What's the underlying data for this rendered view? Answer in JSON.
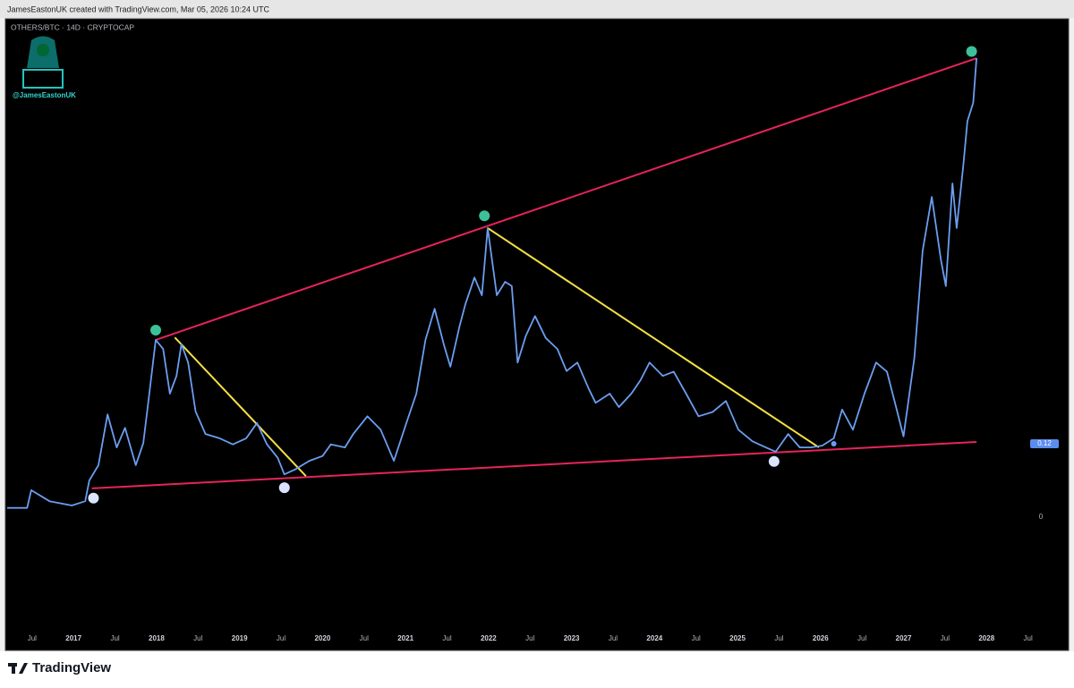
{
  "chart_data": {
    "type": "line",
    "header": "JamesEastonUK created with TradingView.com, Mar 05, 2026 10:24 UTC",
    "symbol": "OTHERS/BTC · 14D · CRYPTOCAP",
    "watermark": "@JamesEastonUK",
    "brand": "TradingView",
    "xlim": [
      2016.2,
      2029.0
    ],
    "ylim": [
      -0.186,
      0.814
    ],
    "xticks": [
      {
        "value": 2016.5,
        "label": "Jul"
      },
      2017,
      {
        "value": 2017.5,
        "label": "Jul"
      },
      2018,
      {
        "value": 2018.5,
        "label": "Jul"
      },
      2019,
      {
        "value": 2019.5,
        "label": "Jul"
      },
      2020,
      {
        "value": 2020.5,
        "label": "Jul"
      },
      2021,
      {
        "value": 2021.5,
        "label": "Jul"
      },
      2022,
      {
        "value": 2022.5,
        "label": "Jul"
      },
      2023,
      {
        "value": 2023.5,
        "label": "Jul"
      },
      2024,
      {
        "value": 2024.5,
        "label": "Jul"
      },
      2025,
      {
        "value": 2025.5,
        "label": "Jul"
      },
      2026,
      {
        "value": 2026.5,
        "label": "Jul"
      },
      2027,
      {
        "value": 2027.5,
        "label": "Jul"
      },
      2028,
      {
        "value": 2028.5,
        "label": "Jul"
      }
    ],
    "yticks": [
      0
    ],
    "price_label": 0.12,
    "price_label_color": "#5b8def",
    "color": "#6b9ef0",
    "x": [
      2016.2,
      2016.44,
      2016.49,
      2016.71,
      2016.98,
      2017.14,
      2017.19,
      2017.3,
      2017.41,
      2017.52,
      2017.62,
      2017.75,
      2017.84,
      2017.9,
      2017.99,
      2018.08,
      2018.16,
      2018.24,
      2018.3,
      2018.38,
      2018.47,
      2018.59,
      2018.76,
      2018.92,
      2019.08,
      2019.21,
      2019.33,
      2019.46,
      2019.54,
      2019.67,
      2019.84,
      2020.0,
      2020.1,
      2020.27,
      2020.37,
      2020.54,
      2020.7,
      2020.86,
      2021.02,
      2021.13,
      2021.24,
      2021.35,
      2021.46,
      2021.54,
      2021.65,
      2021.72,
      2021.83,
      2021.92,
      2021.99,
      2022.1,
      2022.2,
      2022.28,
      2022.35,
      2022.45,
      2022.56,
      2022.69,
      2022.83,
      2022.94,
      2023.07,
      2023.21,
      2023.29,
      2023.46,
      2023.57,
      2023.72,
      2023.83,
      2023.94,
      2024.1,
      2024.23,
      2024.38,
      2024.53,
      2024.7,
      2024.86,
      2025.01,
      2025.18,
      2025.34,
      2025.46,
      2025.61,
      2025.75,
      2025.88,
      2026.02,
      2026.16,
      2026.26,
      2026.39,
      2026.53,
      2026.67,
      2026.8,
      2026.91,
      2027.0,
      2027.13,
      2027.23,
      2027.34,
      2027.45,
      2027.51,
      2027.59,
      2027.64,
      2027.72,
      2027.77,
      2027.84,
      2027.88
    ],
    "values": [
      0.015,
      0.015,
      0.044,
      0.026,
      0.019,
      0.026,
      0.06,
      0.085,
      0.168,
      0.114,
      0.146,
      0.085,
      0.121,
      0.187,
      0.29,
      0.275,
      0.202,
      0.231,
      0.283,
      0.253,
      0.173,
      0.136,
      0.129,
      0.119,
      0.129,
      0.154,
      0.119,
      0.097,
      0.07,
      0.078,
      0.092,
      0.1,
      0.119,
      0.114,
      0.136,
      0.165,
      0.143,
      0.092,
      0.158,
      0.202,
      0.29,
      0.341,
      0.283,
      0.246,
      0.312,
      0.348,
      0.392,
      0.363,
      0.473,
      0.363,
      0.385,
      0.378,
      0.253,
      0.297,
      0.329,
      0.293,
      0.275,
      0.239,
      0.253,
      0.209,
      0.187,
      0.202,
      0.18,
      0.202,
      0.224,
      0.253,
      0.231,
      0.238,
      0.202,
      0.165,
      0.172,
      0.19,
      0.143,
      0.124,
      0.114,
      0.107,
      0.136,
      0.114,
      0.114,
      0.117,
      0.129,
      0.176,
      0.143,
      0.202,
      0.253,
      0.238,
      0.18,
      0.132,
      0.26,
      0.436,
      0.524,
      0.421,
      0.378,
      0.546,
      0.473,
      0.575,
      0.648,
      0.678,
      0.751
    ],
    "trendlines": [
      {
        "color": "#e6245a",
        "x": [
          2017.99,
          2027.88
        ],
        "values": [
          0.29,
          0.751
        ]
      },
      {
        "color": "#e6245a",
        "x": [
          2017.22,
          2027.88
        ],
        "values": [
          0.047,
          0.123
        ]
      },
      {
        "color": "#f5e142",
        "x": [
          2018.22,
          2019.8
        ],
        "values": [
          0.294,
          0.067
        ]
      },
      {
        "color": "#f5e142",
        "x": [
          2021.99,
          2025.98
        ],
        "values": [
          0.473,
          0.114
        ]
      }
    ],
    "markers": [
      {
        "color": "#3dbf9a",
        "x": [
          2017.99,
          2021.95,
          2027.82
        ],
        "values": [
          0.306,
          0.493,
          0.762
        ]
      },
      {
        "color": "#dbe4ff",
        "x": [
          2017.24,
          2019.54,
          2025.44
        ],
        "values": [
          0.031,
          0.048,
          0.091
        ]
      },
      {
        "color": "#6b9ef0",
        "x": [
          2026.16
        ],
        "values": [
          0.12
        ]
      }
    ]
  }
}
